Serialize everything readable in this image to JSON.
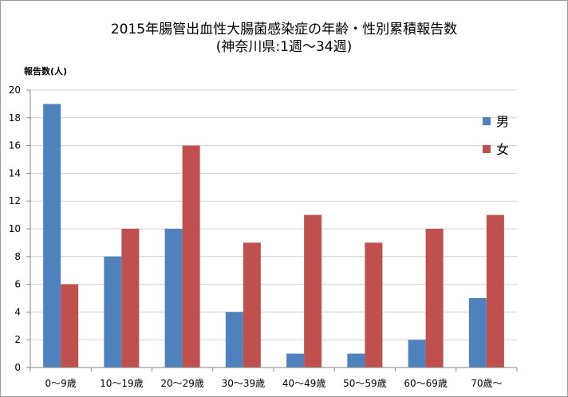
{
  "chart_data": {
    "type": "bar",
    "title": "2015年腸管出血性大腸菌感染症の年齢・性別累積報告数",
    "subtitle": "(神奈川県:1週〜34週)",
    "ylabel": "報告数(人)",
    "xlabel": "",
    "ylim": [
      0,
      20
    ],
    "ytick_step": 2,
    "yticks": [
      "0",
      "2",
      "4",
      "6",
      "8",
      "10",
      "12",
      "14",
      "16",
      "18",
      "20"
    ],
    "grid": true,
    "legend_position": "right",
    "categories": [
      "0〜9歳",
      "10〜19歳",
      "20〜29歳",
      "30〜39歳",
      "40〜49歳",
      "50〜59歳",
      "60〜69歳",
      "70歳〜"
    ],
    "series": [
      {
        "name": "男",
        "color": "#4f81bd",
        "values": [
          19,
          8,
          10,
          4,
          1,
          1,
          2,
          5
        ]
      },
      {
        "name": "女",
        "color": "#c0504d",
        "values": [
          6,
          10,
          16,
          9,
          11,
          9,
          10,
          11
        ]
      }
    ]
  }
}
